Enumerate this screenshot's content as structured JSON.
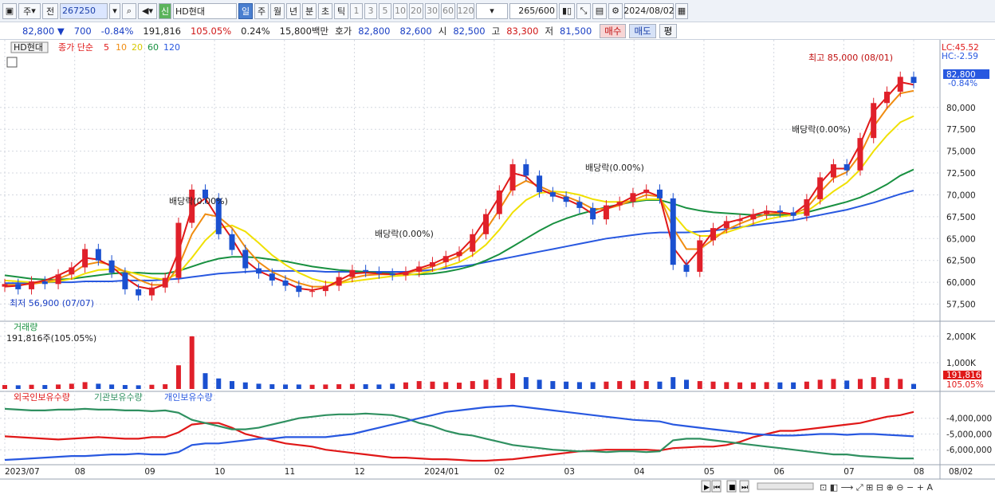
{
  "toolbar": {
    "period_labels": [
      "주",
      "전"
    ],
    "code": "267250",
    "badge": "신",
    "stock_name": "HD현대",
    "intervals": [
      "일",
      "주",
      "월",
      "년",
      "분",
      "초",
      "틱"
    ],
    "selected_interval": "일",
    "multipliers": [
      "1",
      "3",
      "5",
      "10",
      "20",
      "30",
      "60",
      "120"
    ],
    "count_value": "265",
    "count_total": "/600",
    "date": "2024/08/02"
  },
  "quote": {
    "price": "82,800 ▼",
    "change": "700",
    "change_pct": "-0.84%",
    "volume": "191,816",
    "vol_ratio": "105.05%",
    "turnover": "0.24%",
    "trade_value": "15,800백만",
    "ask_label": "호가",
    "ask1": "82,800",
    "ask2": "82,600",
    "open_label": "시",
    "open": "82,500",
    "high_label": "고",
    "high": "83,300",
    "low_label": "저",
    "low": "81,500",
    "buy": "매수",
    "sell": "매도",
    "eval": "평"
  },
  "colors": {
    "up": "#e0202a",
    "down": "#1a50d0",
    "ma5": "#e01818",
    "ma10": "#f08c10",
    "ma20": "#f0e000",
    "ma60": "#189040",
    "ma120": "#2858e0",
    "foreign": "#e01818",
    "inst": "#2f9060",
    "indiv": "#2858e0"
  },
  "chart_data": [
    {
      "type": "candlestick",
      "title": "HD현대",
      "legend": {
        "price_label": "종가 단순",
        "periods": [
          "5",
          "10",
          "20",
          "60",
          "120"
        ]
      },
      "ylim": [
        56000,
        87000
      ],
      "y_ticks": [
        "57,500",
        "60,000",
        "62,500",
        "65,000",
        "67,500",
        "70,000",
        "72,500",
        "75,000",
        "77,500",
        "80,000"
      ],
      "x_labels": [
        "2023/07",
        "08",
        "09",
        "10",
        "11",
        "12",
        "2024/01",
        "02",
        "03",
        "04",
        "05",
        "06",
        "07",
        "08"
      ],
      "x_tail": "08/02",
      "lc": "LC:45.52",
      "hc": "HC:-2.59",
      "last_price": "82,800",
      "last_change": "-0.84%",
      "high_annotation": "최고 85,000 (08/01)",
      "low_annotation": "최저 56,900 (07/07)",
      "dividend_label": "배당락(0.00%)",
      "weekly_closes": [
        59800,
        59200,
        60100,
        59800,
        60900,
        61700,
        63800,
        62500,
        61100,
        59200,
        58500,
        59400,
        60500,
        66800,
        70600,
        69600,
        65500,
        63700,
        61600,
        61000,
        60200,
        59600,
        58900,
        59000,
        59600,
        60600,
        61400,
        61200,
        61000,
        60800,
        61200,
        61800,
        62300,
        63000,
        63500,
        65500,
        67800,
        70500,
        73500,
        72200,
        70300,
        69800,
        69200,
        68500,
        67200,
        68800,
        69200,
        70200,
        70600,
        69600,
        62000,
        61200,
        64800,
        66200,
        67000,
        67200,
        67800,
        68200,
        68000,
        67600,
        69500,
        72000,
        73500,
        72800,
        76500,
        80500,
        81800,
        83500,
        82800
      ],
      "ma5_values": [
        59500,
        59600,
        59900,
        60200,
        60800,
        61500,
        62800,
        62600,
        61800,
        60500,
        59500,
        59200,
        59800,
        63500,
        68500,
        69600,
        67200,
        65000,
        62500,
        61300,
        60600,
        60000,
        59300,
        59100,
        59400,
        60200,
        61000,
        61100,
        61000,
        60900,
        61100,
        61600,
        62100,
        62800,
        63400,
        65000,
        67300,
        69800,
        72500,
        72100,
        70700,
        70000,
        69500,
        68800,
        67800,
        68400,
        69000,
        69800,
        70400,
        69800,
        64000,
        62000,
        63800,
        65800,
        66800,
        67200,
        67700,
        68100,
        68000,
        67800,
        69000,
        71300,
        73000,
        73000,
        75800,
        79500,
        81200,
        82900,
        82600
      ],
      "ma10_values": [
        59700,
        59700,
        59800,
        60000,
        60400,
        61000,
        62000,
        62300,
        62000,
        61200,
        60300,
        59700,
        59700,
        61800,
        65500,
        67800,
        67500,
        66200,
        64000,
        62300,
        61200,
        60500,
        59900,
        59500,
        59500,
        59900,
        60500,
        60800,
        60900,
        60900,
        61000,
        61400,
        61800,
        62400,
        63000,
        64200,
        66000,
        68300,
        70800,
        71600,
        71000,
        70300,
        69800,
        69200,
        68400,
        68400,
        68800,
        69400,
        70000,
        69800,
        66200,
        63800,
        63800,
        64900,
        66000,
        66700,
        67300,
        67800,
        67900,
        67800,
        68500,
        70300,
        71900,
        72600,
        74600,
        77800,
        79900,
        81600,
        81900
      ],
      "ma20_values": [
        60200,
        60100,
        60000,
        60000,
        60100,
        60400,
        61000,
        61400,
        61500,
        61300,
        60900,
        60500,
        60300,
        61000,
        62800,
        64800,
        66200,
        66500,
        65800,
        64500,
        63100,
        62000,
        61100,
        60400,
        60000,
        59900,
        60100,
        60300,
        60500,
        60700,
        60800,
        61000,
        61300,
        61800,
        62300,
        63100,
        64300,
        66000,
        68000,
        69400,
        70200,
        70400,
        70300,
        70000,
        69500,
        69200,
        69200,
        69300,
        69500,
        69500,
        67800,
        66000,
        65300,
        65300,
        65700,
        66200,
        66700,
        67200,
        67500,
        67700,
        68100,
        69200,
        70400,
        71400,
        72900,
        75000,
        76800,
        78300,
        79000
      ],
      "ma60_values": [
        60800,
        60600,
        60400,
        60300,
        60300,
        60400,
        60600,
        60800,
        61000,
        61100,
        61100,
        61000,
        61000,
        61300,
        61800,
        62300,
        62700,
        62900,
        62900,
        62800,
        62600,
        62400,
        62100,
        61800,
        61600,
        61400,
        61300,
        61200,
        61100,
        61000,
        60900,
        60900,
        61000,
        61200,
        61500,
        61900,
        62500,
        63200,
        64100,
        65000,
        65900,
        66700,
        67300,
        67800,
        68200,
        68600,
        68900,
        69200,
        69400,
        69400,
        69000,
        68500,
        68200,
        68000,
        67900,
        67800,
        67700,
        67700,
        67700,
        67800,
        68000,
        68400,
        68800,
        69200,
        69700,
        70400,
        71200,
        72200,
        72900
      ],
      "ma120_values": [
        59900,
        59900,
        59900,
        60000,
        60000,
        60000,
        60100,
        60100,
        60100,
        60200,
        60200,
        60200,
        60300,
        60400,
        60600,
        60800,
        61000,
        61100,
        61200,
        61300,
        61300,
        61300,
        61300,
        61300,
        61200,
        61200,
        61200,
        61200,
        61200,
        61200,
        61200,
        61300,
        61400,
        61600,
        61800,
        62000,
        62300,
        62600,
        62900,
        63200,
        63500,
        63800,
        64100,
        64400,
        64700,
        65000,
        65200,
        65400,
        65600,
        65700,
        65700,
        65700,
        65800,
        65900,
        66100,
        66300,
        66500,
        66700,
        66900,
        67100,
        67400,
        67700,
        68000,
        68300,
        68700,
        69100,
        69600,
        70100,
        70500
      ]
    },
    {
      "type": "bar",
      "title": "거래량",
      "subtitle": "191,816주(105.05%)",
      "y_ticks": [
        "2,000K",
        "1,000K"
      ],
      "ylim": [
        0,
        2300000
      ],
      "last_volume": "191,816",
      "last_ratio": "105.05%",
      "weekly_volumes": [
        150000,
        140000,
        160000,
        150000,
        170000,
        200000,
        260000,
        200000,
        170000,
        150000,
        140000,
        160000,
        180000,
        900000,
        2000000,
        600000,
        400000,
        300000,
        250000,
        200000,
        180000,
        170000,
        170000,
        160000,
        170000,
        180000,
        190000,
        180000,
        170000,
        200000,
        250000,
        300000,
        280000,
        260000,
        240000,
        300000,
        350000,
        420000,
        600000,
        450000,
        350000,
        300000,
        280000,
        260000,
        260000,
        280000,
        300000,
        320000,
        300000,
        280000,
        450000,
        350000,
        300000,
        280000,
        260000,
        250000,
        250000,
        260000,
        250000,
        250000,
        280000,
        350000,
        380000,
        320000,
        380000,
        450000,
        420000,
        380000,
        191816
      ]
    },
    {
      "type": "line",
      "title": "외국인보유수량",
      "legend": [
        "외국인보유수량",
        "기관보유수량",
        "개인보유수량"
      ],
      "y_ticks": [
        "-4,000,000",
        "-5,000,000",
        "-6,000,000"
      ],
      "ylim": [
        -6800000,
        -3000000
      ],
      "series": [
        {
          "name": "외국인보유수량",
          "values": [
            -5150000,
            -5200000,
            -5250000,
            -5300000,
            -5350000,
            -5300000,
            -5250000,
            -5200000,
            -5250000,
            -5300000,
            -5300000,
            -5200000,
            -5200000,
            -4900000,
            -4400000,
            -4300000,
            -4300000,
            -4600000,
            -5000000,
            -5200000,
            -5400000,
            -5600000,
            -5700000,
            -5800000,
            -6000000,
            -6100000,
            -6200000,
            -6300000,
            -6400000,
            -6500000,
            -6500000,
            -6550000,
            -6600000,
            -6600000,
            -6650000,
            -6700000,
            -6700000,
            -6650000,
            -6600000,
            -6500000,
            -6400000,
            -6300000,
            -6200000,
            -6100000,
            -6050000,
            -6000000,
            -6000000,
            -6000000,
            -6000000,
            -6050000,
            -5900000,
            -5850000,
            -5800000,
            -5800000,
            -5700000,
            -5500000,
            -5200000,
            -5000000,
            -4800000,
            -4800000,
            -4700000,
            -4600000,
            -4500000,
            -4400000,
            -4300000,
            -4100000,
            -3900000,
            -3800000,
            -3600000
          ]
        },
        {
          "name": "기관보유수량",
          "values": [
            -3400000,
            -3450000,
            -3500000,
            -3500000,
            -3450000,
            -3450000,
            -3400000,
            -3450000,
            -3450000,
            -3500000,
            -3500000,
            -3550000,
            -3500000,
            -3650000,
            -4100000,
            -4300000,
            -4500000,
            -4700000,
            -4700000,
            -4600000,
            -4400000,
            -4200000,
            -4000000,
            -3900000,
            -3800000,
            -3750000,
            -3750000,
            -3700000,
            -3750000,
            -3800000,
            -4000000,
            -4300000,
            -4500000,
            -4800000,
            -5000000,
            -5100000,
            -5300000,
            -5500000,
            -5700000,
            -5800000,
            -5900000,
            -6000000,
            -6050000,
            -6100000,
            -6100000,
            -6150000,
            -6100000,
            -6100000,
            -6150000,
            -6100000,
            -5400000,
            -5300000,
            -5300000,
            -5400000,
            -5500000,
            -5600000,
            -5700000,
            -5800000,
            -5900000,
            -6000000,
            -6100000,
            -6200000,
            -6300000,
            -6300000,
            -6400000,
            -6450000,
            -6500000,
            -6550000,
            -6550000
          ]
        },
        {
          "name": "개인보유수량",
          "values": [
            -6650000,
            -6600000,
            -6550000,
            -6500000,
            -6450000,
            -6400000,
            -6400000,
            -6350000,
            -6300000,
            -6300000,
            -6250000,
            -6300000,
            -6300000,
            -6150000,
            -5700000,
            -5600000,
            -5600000,
            -5500000,
            -5400000,
            -5300000,
            -5300000,
            -5200000,
            -5200000,
            -5200000,
            -5200000,
            -5100000,
            -5000000,
            -4800000,
            -4600000,
            -4400000,
            -4200000,
            -4000000,
            -3800000,
            -3600000,
            -3500000,
            -3400000,
            -3300000,
            -3250000,
            -3200000,
            -3300000,
            -3400000,
            -3500000,
            -3600000,
            -3700000,
            -3800000,
            -3900000,
            -4000000,
            -4100000,
            -4150000,
            -4200000,
            -4400000,
            -4500000,
            -4600000,
            -4700000,
            -4800000,
            -4900000,
            -5000000,
            -5050000,
            -5100000,
            -5100000,
            -5050000,
            -5000000,
            -5000000,
            -5050000,
            -5000000,
            -5000000,
            -5050000,
            -5100000,
            -5150000
          ]
        }
      ]
    }
  ]
}
